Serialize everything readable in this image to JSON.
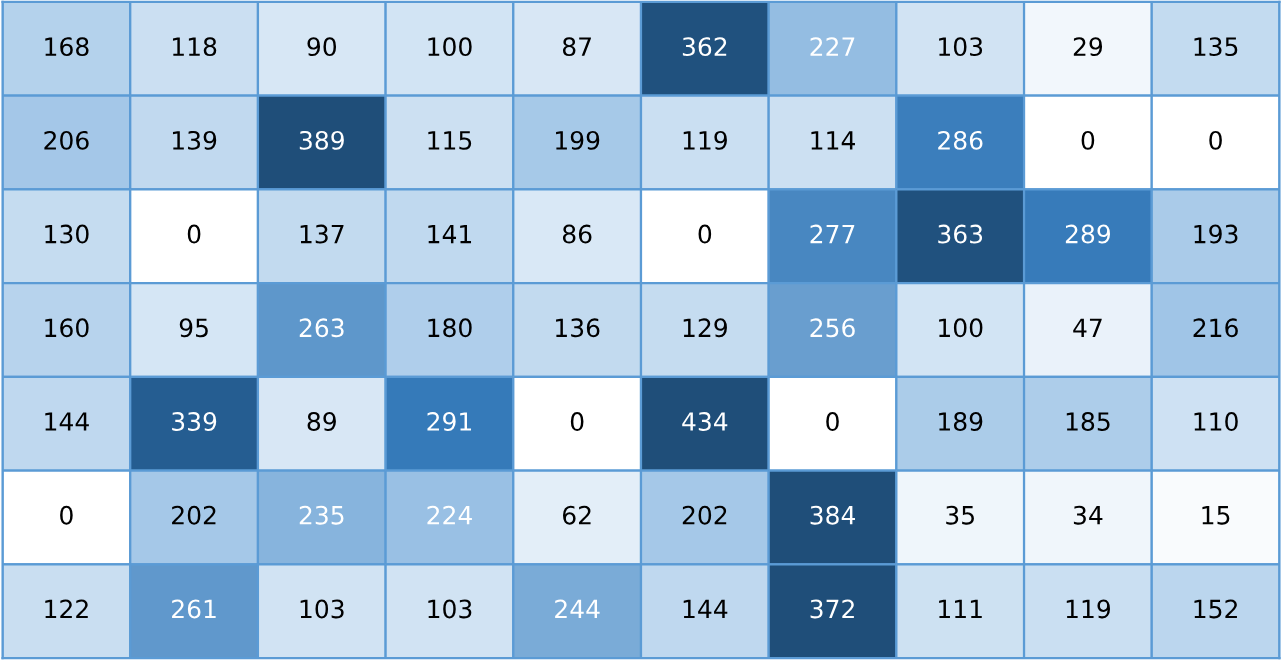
{
  "chart_data": {
    "type": "heatmap",
    "categories": [
      null,
      null,
      null,
      null,
      null,
      null,
      null,
      null,
      null,
      null
    ],
    "y_categories": [
      null,
      null,
      null,
      null,
      null,
      null,
      null
    ],
    "cells": [
      [
        168,
        118,
        90,
        100,
        87,
        362,
        227,
        103,
        29,
        135
      ],
      [
        206,
        139,
        389,
        115,
        199,
        119,
        114,
        286,
        0,
        0
      ],
      [
        130,
        0,
        137,
        141,
        86,
        0,
        277,
        363,
        289,
        193
      ],
      [
        160,
        95,
        263,
        180,
        136,
        129,
        256,
        100,
        47,
        216
      ],
      [
        144,
        339,
        89,
        291,
        0,
        434,
        0,
        189,
        185,
        110
      ],
      [
        0,
        202,
        235,
        224,
        62,
        202,
        384,
        35,
        34,
        15
      ],
      [
        122,
        261,
        103,
        103,
        244,
        144,
        372,
        111,
        119,
        152
      ]
    ],
    "data_labels": true
  }
}
